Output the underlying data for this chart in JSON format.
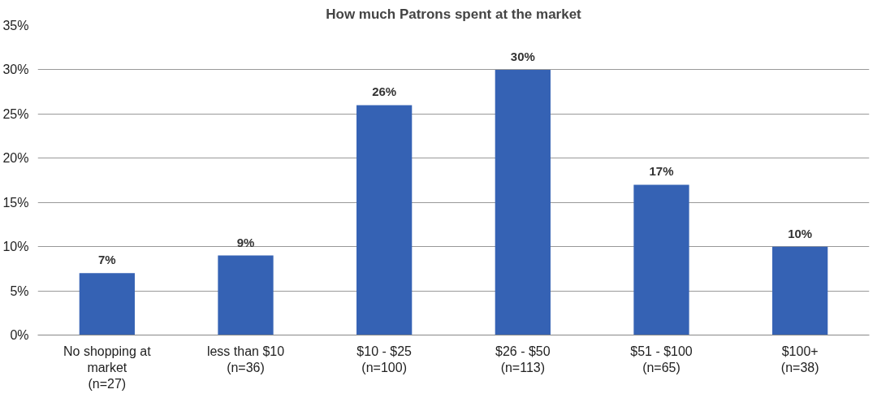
{
  "chart_data": {
    "type": "bar",
    "title": "How much Patrons spent at the market",
    "categories": [
      "No shopping at\nmarket\n(n=27)",
      "less than $10\n(n=36)",
      "$10 - $25\n(n=100)",
      "$26 - $50\n(n=113)",
      "$51 - $100\n(n=65)",
      "$100+\n(n=38)"
    ],
    "values": [
      7,
      9,
      26,
      30,
      17,
      10
    ],
    "color": "#3562b4",
    "value_labels": [
      "7%",
      "9%",
      "26%",
      "30%",
      "17%",
      "10%"
    ],
    "ylim": [
      0,
      35
    ],
    "yticks": [
      {
        "value": 0,
        "label": "0%"
      },
      {
        "value": 5,
        "label": "5%"
      },
      {
        "value": 10,
        "label": "10%"
      },
      {
        "value": 15,
        "label": "15%"
      },
      {
        "value": 20,
        "label": "20%"
      },
      {
        "value": 25,
        "label": "25%"
      },
      {
        "value": 30,
        "label": "30%"
      },
      {
        "value": 35,
        "label": "35%"
      }
    ],
    "grid": "y"
  }
}
